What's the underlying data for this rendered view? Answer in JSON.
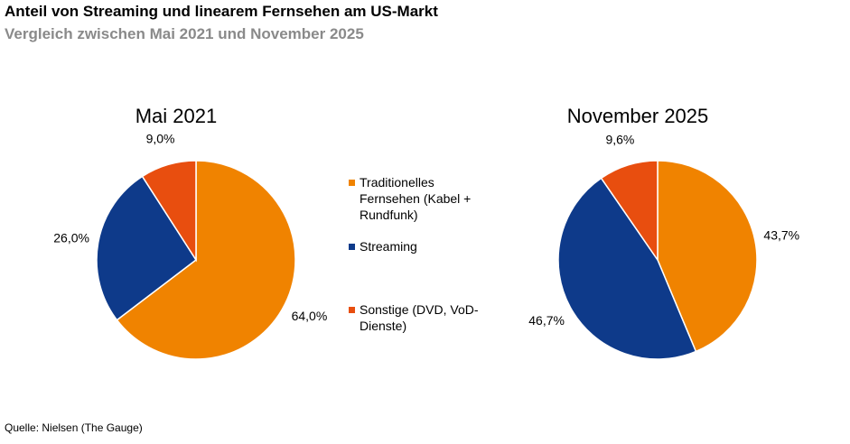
{
  "title": "Anteil von Streaming und linearem Fernsehen am US-Markt",
  "subtitle": "Vergleich zwischen Mai 2021 und November 2025",
  "source": "Quelle: Nielsen (The Gauge)",
  "colors": {
    "traditional": "#F08300",
    "streaming": "#0E3A8A",
    "other": "#E84E0F"
  },
  "legend": [
    {
      "label": "Traditionelles Fernsehen (Kabel + Rundfunk)",
      "color": "#F08300"
    },
    {
      "label": "Streaming",
      "color": "#0E3A8A"
    },
    {
      "label": "Sonstige (DVD, VoD-Dienste)",
      "color": "#E84E0F"
    }
  ],
  "chart_data": [
    {
      "type": "pie",
      "title": "Mai 2021",
      "categories": [
        "Traditionelles Fernsehen (Kabel + Rundfunk)",
        "Streaming",
        "Sonstige (DVD, VoD-Dienste)"
      ],
      "values": [
        64.0,
        26.0,
        9.0
      ],
      "labels": [
        "64,0%",
        "26,0%",
        "9,0%"
      ]
    },
    {
      "type": "pie",
      "title": "November 2025",
      "categories": [
        "Traditionelles Fernsehen (Kabel + Rundfunk)",
        "Streaming",
        "Sonstige (DVD, VoD-Dienste)"
      ],
      "values": [
        43.7,
        46.7,
        9.6
      ],
      "labels": [
        "43,7%",
        "46,7%",
        "9,6%"
      ]
    }
  ]
}
